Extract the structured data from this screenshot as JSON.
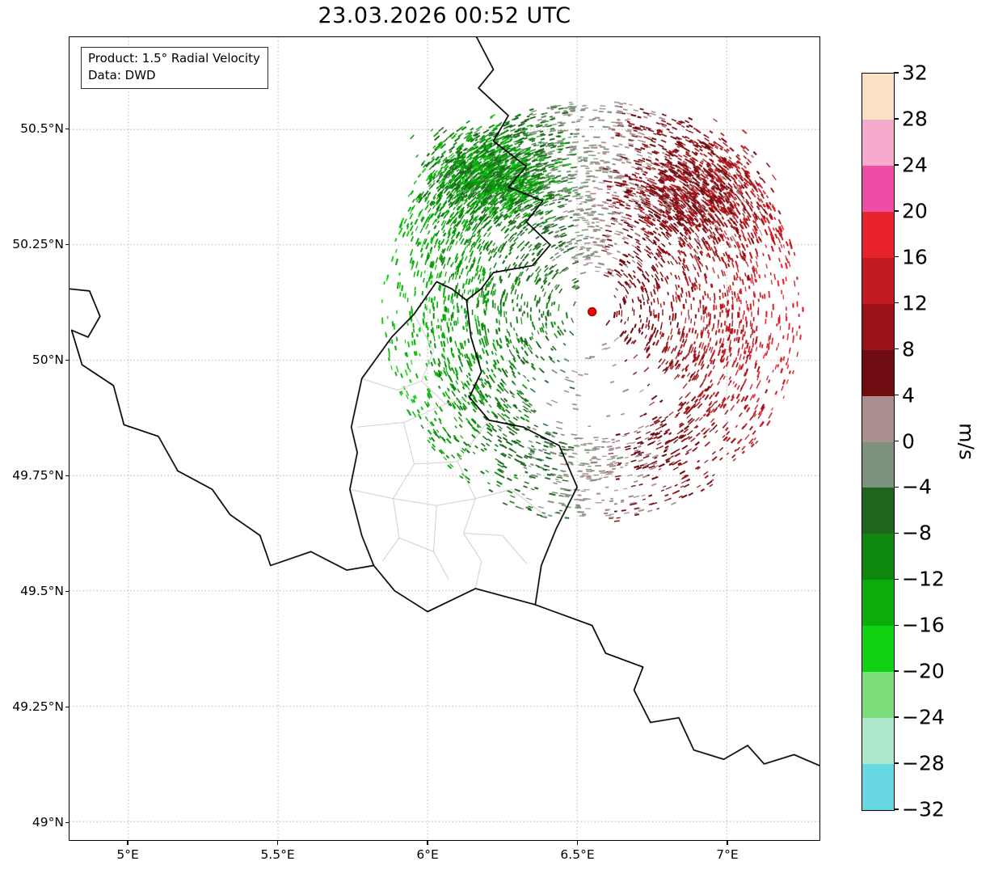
{
  "figure": {
    "title": "23.03.2026 00:52 UTC",
    "annotation": {
      "line1": "Product: 1.5° Radial Velocity",
      "line2": "Data: DWD"
    }
  },
  "colors": {
    "grid": "#aaaaaa",
    "border_national": "#000000",
    "border_regional": "#c9c9c9",
    "frame": "#000000",
    "radar_dot": "#ff0000",
    "radar_dot_edge": "#7a0000",
    "background": "#ffffff"
  },
  "chart_data": {
    "type": "heatmap",
    "subtype": "doppler-radar-radial-velocity-map",
    "title": "23.03.2026 00:52 UTC",
    "product": "1.5° Radial Velocity",
    "data_source": "DWD",
    "grid": "dotted",
    "x_axis": {
      "range": [
        4.803,
        7.31
      ],
      "ticks": [
        5,
        5.5,
        6,
        6.5,
        7
      ],
      "tick_labels": [
        "5°E",
        "5.5°E",
        "6°E",
        "6.5°E",
        "7°E"
      ]
    },
    "y_axis": {
      "range": [
        48.96,
        50.7
      ],
      "ticks": [
        49,
        49.25,
        49.5,
        49.75,
        50,
        50.25,
        50.5
      ],
      "tick_labels": [
        "49°N",
        "49.25°N",
        "49.5°N",
        "49.75°N",
        "50°N",
        "50.25°N",
        "50.5°N"
      ]
    },
    "colorbar": {
      "label": "m/s",
      "min": -32,
      "max": 32,
      "tick_step": 4,
      "levels": [
        -32,
        -28,
        -24,
        -20,
        -16,
        -12,
        -8,
        -4,
        0,
        4,
        8,
        12,
        16,
        20,
        24,
        28,
        32
      ],
      "tick_labels_top_to_bottom": [
        "32",
        "28",
        "24",
        "20",
        "16",
        "12",
        "8",
        "4",
        "0",
        "−4",
        "−8",
        "−12",
        "−16",
        "−20",
        "−24",
        "−28",
        "−32"
      ],
      "colors_ascending": [
        "#66d7e3",
        "#aee8cb",
        "#7cdf7c",
        "#12d112",
        "#0aad0a",
        "#0d870d",
        "#1e661e",
        "#7d917d",
        "#aa8e90",
        "#6f0c11",
        "#991318",
        "#c41a21",
        "#e8232c",
        "#ee4da5",
        "#f6abcc",
        "#fbe1c3"
      ],
      "position": "right"
    },
    "radar_site": {
      "lon": 6.55,
      "lat": 50.105,
      "marker": "red-dot"
    },
    "field": {
      "description": "Doppler radial velocity: negative (green, toward radar) west of site, positive (dark red, away) east of site, gray near zero isodop N-S through site; dense patch NW, sparse sector S of site.",
      "seed": 20260323,
      "r_max_lon_deg": 0.705,
      "r_min_frac": 0.07,
      "n_main": 5200,
      "amp_near": 5,
      "amp_far": 17,
      "noise": 3,
      "south_gap": {
        "az_from": -120,
        "az_to": -40,
        "r_frac_below": 0.6,
        "keep": 0.12
      },
      "clusters": [
        {
          "az_deg": 127,
          "dist_frac": 0.8,
          "sigma_x_frac": 0.21,
          "sigma_y_frac": 0.15,
          "n": 1400,
          "v_base": -5,
          "v_spread": -11
        },
        {
          "az_deg": 50,
          "dist_frac": 0.74,
          "sigma_x_frac": 0.22,
          "sigma_y_frac": 0.17,
          "n": 850,
          "v_base": 4,
          "v_spread": 9
        }
      ]
    },
    "borders": {
      "national": [
        [
          [
            6.16,
            50.705
          ],
          [
            6.22,
            50.63
          ],
          [
            6.17,
            50.59
          ],
          [
            6.27,
            50.53
          ],
          [
            6.22,
            50.475
          ],
          [
            6.33,
            50.42
          ],
          [
            6.27,
            50.375
          ],
          [
            6.385,
            50.345
          ],
          [
            6.33,
            50.3
          ],
          [
            6.41,
            50.25
          ],
          [
            6.35,
            50.205
          ],
          [
            6.22,
            50.19
          ],
          [
            6.18,
            50.155
          ],
          [
            6.13,
            50.13
          ]
        ],
        [
          [
            6.13,
            50.13
          ],
          [
            6.145,
            50.05
          ],
          [
            6.18,
            49.975
          ],
          [
            6.14,
            49.92
          ],
          [
            6.205,
            49.87
          ],
          [
            6.32,
            49.855
          ],
          [
            6.44,
            49.815
          ],
          [
            6.5,
            49.725
          ],
          [
            6.43,
            49.635
          ],
          [
            6.38,
            49.555
          ],
          [
            6.36,
            49.47
          ]
        ],
        [
          [
            6.13,
            50.13
          ],
          [
            6.08,
            50.155
          ],
          [
            6.03,
            50.17
          ],
          [
            5.955,
            50.1
          ],
          [
            5.88,
            50.05
          ],
          [
            5.78,
            49.96
          ],
          [
            5.745,
            49.855
          ],
          [
            5.765,
            49.8
          ],
          [
            5.74,
            49.72
          ],
          [
            5.78,
            49.62
          ],
          [
            5.82,
            49.555
          ],
          [
            5.89,
            49.5
          ],
          [
            6.0,
            49.455
          ],
          [
            6.16,
            49.505
          ],
          [
            6.36,
            49.47
          ]
        ],
        [
          [
            4.795,
            50.155
          ],
          [
            4.87,
            50.15
          ],
          [
            4.905,
            50.095
          ],
          [
            4.865,
            50.05
          ],
          [
            4.81,
            50.065
          ],
          [
            4.845,
            49.99
          ],
          [
            4.95,
            49.945
          ],
          [
            4.985,
            49.86
          ],
          [
            5.1,
            49.835
          ],
          [
            5.165,
            49.76
          ],
          [
            5.28,
            49.72
          ],
          [
            5.34,
            49.665
          ],
          [
            5.44,
            49.62
          ],
          [
            5.475,
            49.555
          ],
          [
            5.61,
            49.585
          ],
          [
            5.73,
            49.545
          ],
          [
            5.82,
            49.555
          ]
        ],
        [
          [
            6.36,
            49.47
          ],
          [
            6.55,
            49.425
          ],
          [
            6.595,
            49.365
          ],
          [
            6.72,
            49.335
          ],
          [
            6.69,
            49.285
          ],
          [
            6.745,
            49.215
          ],
          [
            6.84,
            49.225
          ],
          [
            6.89,
            49.155
          ],
          [
            6.99,
            49.135
          ],
          [
            7.07,
            49.165
          ],
          [
            7.125,
            49.125
          ],
          [
            7.225,
            49.145
          ],
          [
            7.315,
            49.12
          ]
        ]
      ],
      "regional": [
        [
          [
            5.955,
            50.1
          ],
          [
            6.02,
            50.02
          ],
          [
            5.98,
            49.955
          ],
          [
            6.06,
            49.905
          ],
          [
            6.14,
            49.92
          ]
        ],
        [
          [
            5.78,
            49.96
          ],
          [
            5.9,
            49.935
          ],
          [
            5.98,
            49.955
          ]
        ],
        [
          [
            5.765,
            49.855
          ],
          [
            5.92,
            49.865
          ],
          [
            6.06,
            49.905
          ]
        ],
        [
          [
            5.92,
            49.865
          ],
          [
            5.955,
            49.775
          ],
          [
            5.885,
            49.7
          ],
          [
            5.905,
            49.615
          ],
          [
            5.85,
            49.565
          ]
        ],
        [
          [
            5.955,
            49.775
          ],
          [
            6.1,
            49.78
          ],
          [
            6.205,
            49.87
          ]
        ],
        [
          [
            6.1,
            49.78
          ],
          [
            6.16,
            49.7
          ],
          [
            6.12,
            49.625
          ],
          [
            6.18,
            49.565
          ],
          [
            6.16,
            49.505
          ]
        ],
        [
          [
            5.74,
            49.72
          ],
          [
            5.885,
            49.7
          ],
          [
            6.03,
            49.685
          ],
          [
            6.16,
            49.7
          ]
        ],
        [
          [
            6.16,
            49.7
          ],
          [
            6.28,
            49.72
          ],
          [
            6.4,
            49.66
          ]
        ],
        [
          [
            6.03,
            49.685
          ],
          [
            6.02,
            49.585
          ],
          [
            6.07,
            49.525
          ]
        ],
        [
          [
            5.905,
            49.615
          ],
          [
            6.02,
            49.585
          ]
        ],
        [
          [
            6.12,
            49.625
          ],
          [
            6.25,
            49.62
          ],
          [
            6.33,
            49.56
          ]
        ]
      ]
    }
  }
}
